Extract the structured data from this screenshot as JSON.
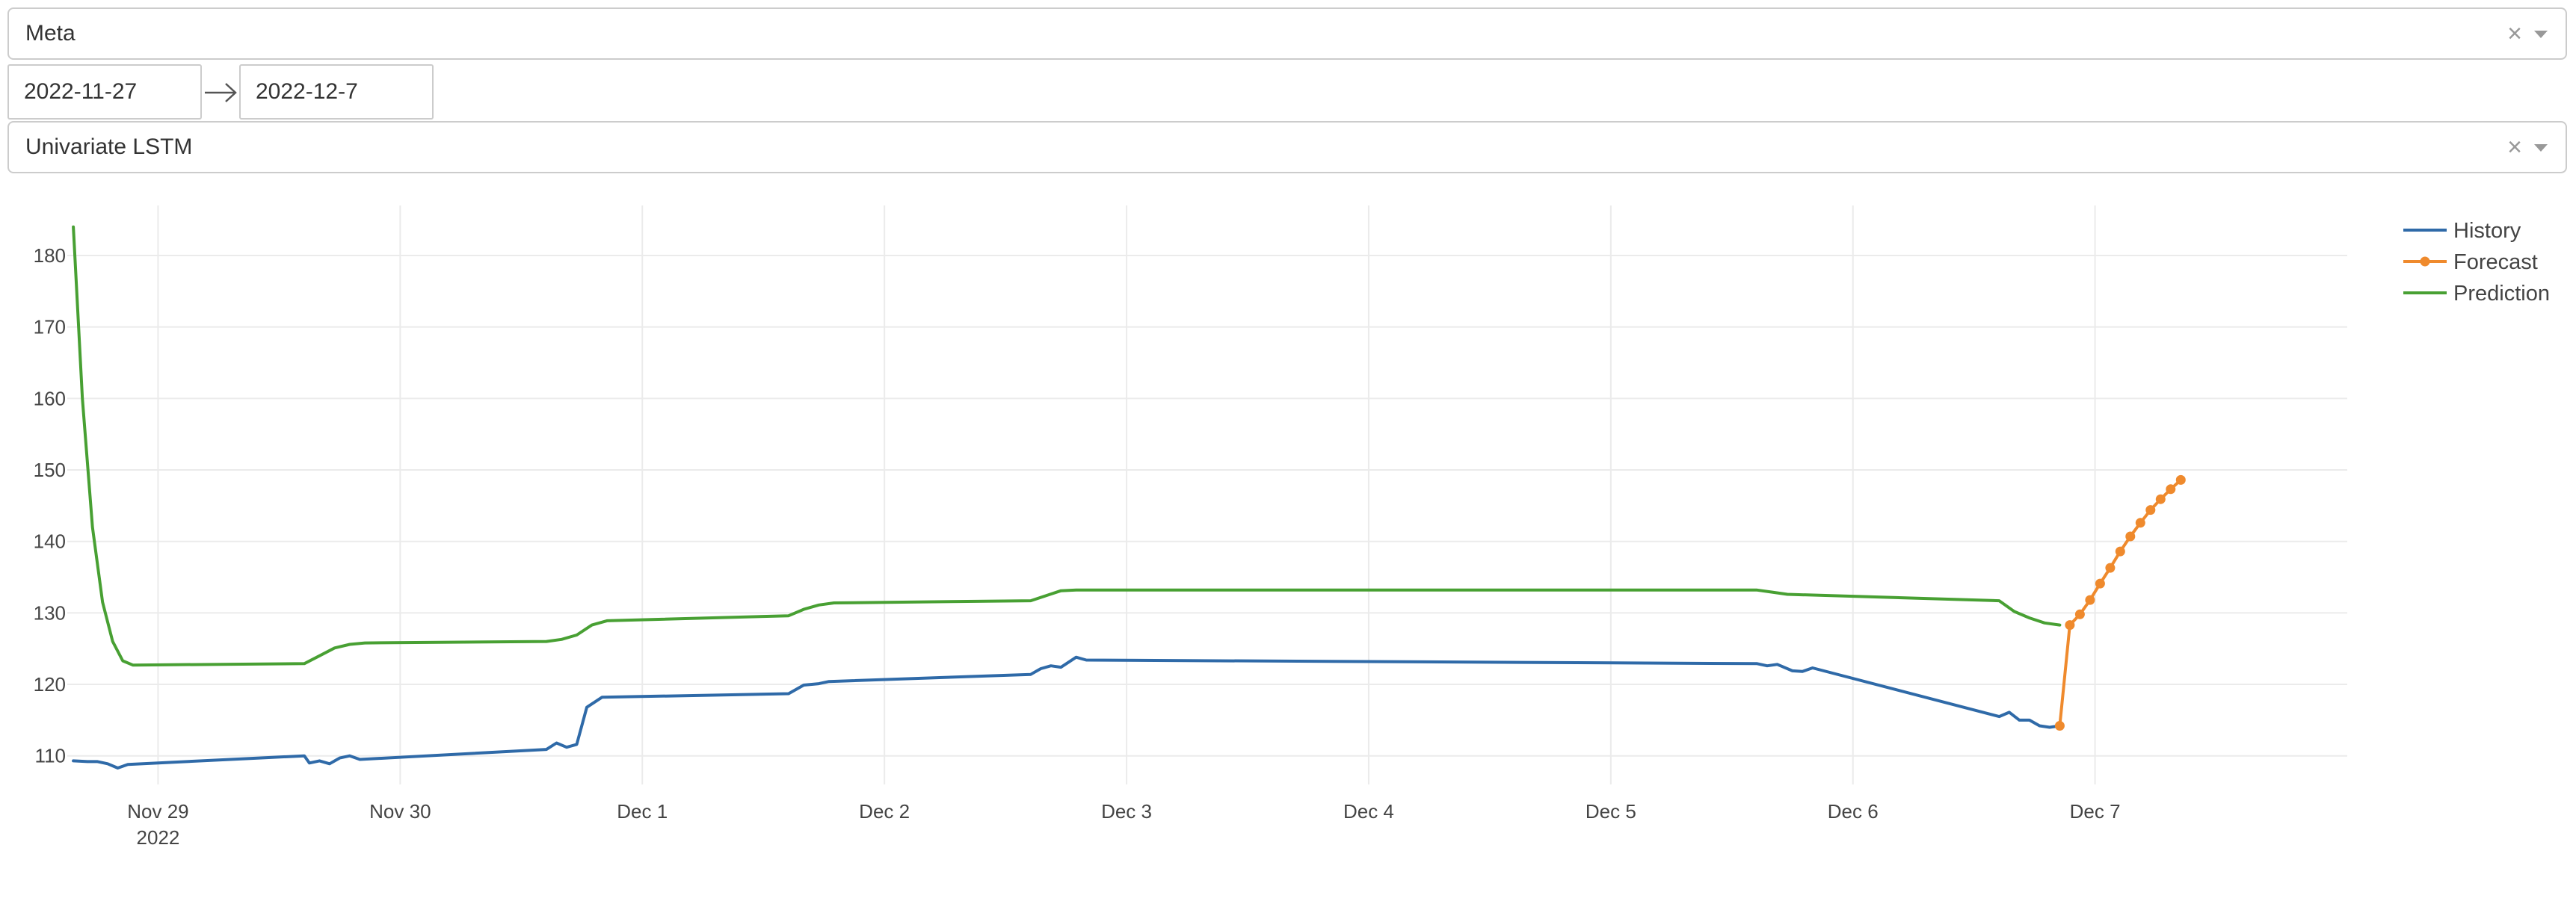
{
  "stock_select": {
    "value": "Meta",
    "clear_glyph": "×"
  },
  "date_range": {
    "start": "2022-11-27",
    "end": "2022-12-7"
  },
  "model_select": {
    "value": "Univariate LSTM",
    "clear_glyph": "×"
  },
  "icons": {
    "clear": "clear-icon",
    "dropdown": "chevron-down-icon",
    "range_arrow": "arrow-right-icon"
  },
  "colors": {
    "history": "#2f6aa8",
    "forecast": "#ef8a2d",
    "prediction": "#48a033",
    "grid": "#ebebeb"
  },
  "chart_data": {
    "type": "line",
    "x_type": "datetime",
    "xlim": [
      "2022-11-28T15:00",
      "2022-12-08T01:00"
    ],
    "ylim": [
      106,
      187
    ],
    "yticks": [
      110,
      120,
      130,
      140,
      150,
      160,
      170,
      180
    ],
    "xticks": [
      {
        "x": "2022-11-29T00:00",
        "label": "Nov 29",
        "sublabel": "2022"
      },
      {
        "x": "2022-11-30T00:00",
        "label": "Nov 30",
        "sublabel": ""
      },
      {
        "x": "2022-12-01T00:00",
        "label": "Dec 1",
        "sublabel": ""
      },
      {
        "x": "2022-12-02T00:00",
        "label": "Dec 2",
        "sublabel": ""
      },
      {
        "x": "2022-12-03T00:00",
        "label": "Dec 3",
        "sublabel": ""
      },
      {
        "x": "2022-12-04T00:00",
        "label": "Dec 4",
        "sublabel": ""
      },
      {
        "x": "2022-12-05T00:00",
        "label": "Dec 5",
        "sublabel": ""
      },
      {
        "x": "2022-12-06T00:00",
        "label": "Dec 6",
        "sublabel": ""
      },
      {
        "x": "2022-12-07T00:00",
        "label": "Dec 7",
        "sublabel": ""
      }
    ],
    "grid": true,
    "legend_position": "top-right",
    "series": [
      {
        "name": "History",
        "mode": "lines",
        "color": "#2f6aa8",
        "points": [
          [
            "2022-11-28T15:36",
            109.3
          ],
          [
            "2022-11-28T17:00",
            109.2
          ],
          [
            "2022-11-28T18:00",
            109.2
          ],
          [
            "2022-11-28T19:00",
            108.9
          ],
          [
            "2022-11-28T20:00",
            108.3
          ],
          [
            "2022-11-28T21:00",
            108.8
          ],
          [
            "2022-11-29T14:30",
            110.0
          ],
          [
            "2022-11-29T15:00",
            109.0
          ],
          [
            "2022-11-29T16:00",
            109.3
          ],
          [
            "2022-11-29T17:00",
            108.9
          ],
          [
            "2022-11-29T18:00",
            109.7
          ],
          [
            "2022-11-29T19:00",
            110.0
          ],
          [
            "2022-11-29T20:00",
            109.5
          ],
          [
            "2022-11-30T14:30",
            110.9
          ],
          [
            "2022-11-30T15:30",
            111.8
          ],
          [
            "2022-11-30T16:30",
            111.2
          ],
          [
            "2022-11-30T17:30",
            111.6
          ],
          [
            "2022-11-30T18:30",
            116.8
          ],
          [
            "2022-11-30T20:00",
            118.2
          ],
          [
            "2022-12-01T14:30",
            118.7
          ],
          [
            "2022-12-01T16:00",
            119.9
          ],
          [
            "2022-12-01T17:30",
            120.1
          ],
          [
            "2022-12-01T18:30",
            120.4
          ],
          [
            "2022-12-02T14:30",
            121.4
          ],
          [
            "2022-12-02T15:30",
            122.2
          ],
          [
            "2022-12-02T16:30",
            122.6
          ],
          [
            "2022-12-02T17:30",
            122.4
          ],
          [
            "2022-12-02T19:00",
            123.8
          ],
          [
            "2022-12-02T20:00",
            123.4
          ],
          [
            "2022-12-05T14:30",
            122.9
          ],
          [
            "2022-12-05T15:30",
            122.6
          ],
          [
            "2022-12-05T16:30",
            122.8
          ],
          [
            "2022-12-05T18:00",
            121.9
          ],
          [
            "2022-12-05T19:00",
            121.8
          ],
          [
            "2022-12-05T20:00",
            122.3
          ],
          [
            "2022-12-06T14:30",
            115.5
          ],
          [
            "2022-12-06T15:30",
            116.1
          ],
          [
            "2022-12-06T16:30",
            115.0
          ],
          [
            "2022-12-06T17:30",
            115.0
          ],
          [
            "2022-12-06T18:30",
            114.2
          ],
          [
            "2022-12-06T19:30",
            114.0
          ],
          [
            "2022-12-06T20:30",
            114.2
          ]
        ]
      },
      {
        "name": "Forecast",
        "mode": "lines+markers",
        "color": "#ef8a2d",
        "points": [
          [
            "2022-12-06T20:30",
            114.2
          ],
          [
            "2022-12-06T21:30",
            128.3
          ],
          [
            "2022-12-06T22:30",
            129.8
          ],
          [
            "2022-12-06T23:30",
            131.8
          ],
          [
            "2022-12-07T00:30",
            134.1
          ],
          [
            "2022-12-07T01:30",
            136.3
          ],
          [
            "2022-12-07T02:30",
            138.6
          ],
          [
            "2022-12-07T03:30",
            140.7
          ],
          [
            "2022-12-07T04:30",
            142.6
          ],
          [
            "2022-12-07T05:30",
            144.4
          ],
          [
            "2022-12-07T06:30",
            145.9
          ],
          [
            "2022-12-07T07:30",
            147.3
          ],
          [
            "2022-12-07T08:30",
            148.6
          ]
        ]
      },
      {
        "name": "Prediction",
        "mode": "lines",
        "color": "#48a033",
        "points": [
          [
            "2022-11-28T15:36",
            184.0
          ],
          [
            "2022-11-28T16:30",
            160.0
          ],
          [
            "2022-11-28T17:30",
            142.0
          ],
          [
            "2022-11-28T18:30",
            131.5
          ],
          [
            "2022-11-28T19:30",
            126.0
          ],
          [
            "2022-11-28T20:30",
            123.3
          ],
          [
            "2022-11-28T21:30",
            122.7
          ],
          [
            "2022-11-29T14:30",
            122.9
          ],
          [
            "2022-11-29T16:00",
            124.0
          ],
          [
            "2022-11-29T17:30",
            125.1
          ],
          [
            "2022-11-29T19:00",
            125.6
          ],
          [
            "2022-11-29T20:30",
            125.8
          ],
          [
            "2022-11-30T14:30",
            126.0
          ],
          [
            "2022-11-30T16:00",
            126.3
          ],
          [
            "2022-11-30T17:30",
            126.9
          ],
          [
            "2022-11-30T19:00",
            128.3
          ],
          [
            "2022-11-30T20:30",
            128.9
          ],
          [
            "2022-12-01T14:30",
            129.6
          ],
          [
            "2022-12-01T16:00",
            130.5
          ],
          [
            "2022-12-01T17:30",
            131.1
          ],
          [
            "2022-12-01T19:00",
            131.4
          ],
          [
            "2022-12-02T14:30",
            131.7
          ],
          [
            "2022-12-02T16:00",
            132.4
          ],
          [
            "2022-12-02T17:30",
            133.1
          ],
          [
            "2022-12-02T19:00",
            133.2
          ],
          [
            "2022-12-05T14:30",
            133.2
          ],
          [
            "2022-12-05T16:00",
            132.9
          ],
          [
            "2022-12-05T17:30",
            132.6
          ],
          [
            "2022-12-06T14:30",
            131.7
          ],
          [
            "2022-12-06T16:00",
            130.2
          ],
          [
            "2022-12-06T17:30",
            129.3
          ],
          [
            "2022-12-06T19:00",
            128.6
          ],
          [
            "2022-12-06T20:30",
            128.3
          ]
        ]
      }
    ]
  }
}
